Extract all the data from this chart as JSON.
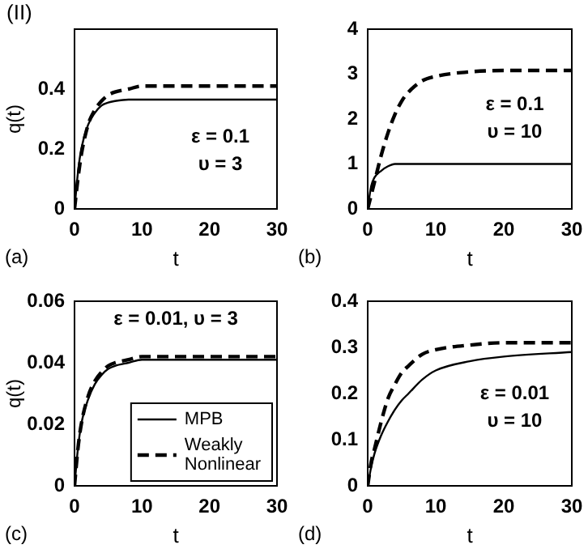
{
  "chart_data": [
    {
      "type": "line",
      "title": "(II)",
      "ylabel": "q(t)",
      "xlabel": "t",
      "annotations": [
        "(a)",
        "ε = 0.1",
        "υ = 3"
      ],
      "xlim": [
        0,
        30
      ],
      "xticks": [
        0,
        10,
        20,
        30
      ],
      "ylim": [
        0,
        0.6
      ],
      "yticks": [
        0,
        0.2,
        0.4
      ],
      "grid": false,
      "legend": false,
      "marker": "none",
      "x": [
        0,
        0.5,
        1,
        2,
        3,
        4,
        5,
        6,
        8,
        10,
        15,
        20,
        30
      ],
      "series": [
        {
          "color": "#000000",
          "line_style": "solid",
          "values": [
            0,
            0.12,
            0.2,
            0.28,
            0.32,
            0.345,
            0.355,
            0.36,
            0.365,
            0.365,
            0.365,
            0.365,
            0.365
          ]
        },
        {
          "color": "#000000",
          "line_style": "dashed",
          "values": [
            0,
            0.1,
            0.18,
            0.28,
            0.33,
            0.36,
            0.38,
            0.39,
            0.4,
            0.41,
            0.41,
            0.41,
            0.41
          ]
        }
      ]
    },
    {
      "type": "line",
      "xlabel": "t",
      "annotations": [
        "(b)",
        "ε = 0.1",
        "υ = 10"
      ],
      "xlim": [
        0,
        30
      ],
      "xticks": [
        0,
        10,
        20,
        30
      ],
      "ylim": [
        0,
        4
      ],
      "yticks": [
        0,
        1,
        2,
        3,
        4
      ],
      "grid": false,
      "legend": false,
      "marker": "none",
      "x": [
        0,
        0.5,
        1,
        2,
        3,
        4,
        5,
        6,
        8,
        10,
        15,
        20,
        30
      ],
      "series": [
        {
          "color": "#000000",
          "line_style": "solid",
          "values": [
            0,
            0.5,
            0.7,
            0.85,
            0.95,
            1,
            1,
            1,
            1,
            1,
            1,
            1,
            1
          ]
        },
        {
          "color": "#000000",
          "line_style": "dashed",
          "values": [
            0,
            0.3,
            0.6,
            1.2,
            1.7,
            2.1,
            2.4,
            2.6,
            2.85,
            2.95,
            3.05,
            3.08,
            3.08
          ]
        }
      ]
    },
    {
      "type": "line",
      "ylabel": "q(t)",
      "xlabel": "t",
      "annotations": [
        "(c)",
        "ε = 0.01, υ = 3"
      ],
      "xlim": [
        0,
        30
      ],
      "xticks": [
        0,
        10,
        20,
        30
      ],
      "ylim": [
        0,
        0.06
      ],
      "yticks": [
        0,
        0.02,
        0.04,
        0.06
      ],
      "grid": false,
      "legend": "bottom right",
      "marker": "none",
      "x": [
        0,
        0.5,
        1,
        2,
        3,
        4,
        5,
        6,
        8,
        10,
        15,
        20,
        30
      ],
      "series": [
        {
          "name": "MPB",
          "color": "#000000",
          "line_style": "solid",
          "values": [
            0,
            0.012,
            0.02,
            0.028,
            0.033,
            0.036,
            0.038,
            0.039,
            0.04,
            0.041,
            0.041,
            0.041,
            0.041
          ]
        },
        {
          "name": "Weakly Nonlinear",
          "color": "#000000",
          "line_style": "dashed",
          "values": [
            0,
            0.012,
            0.02,
            0.029,
            0.034,
            0.037,
            0.039,
            0.04,
            0.041,
            0.042,
            0.042,
            0.042,
            0.042
          ]
        }
      ]
    },
    {
      "type": "line",
      "xlabel": "t",
      "annotations": [
        "(d)",
        "ε = 0.01",
        "υ = 10"
      ],
      "xlim": [
        0,
        30
      ],
      "xticks": [
        0,
        10,
        20,
        30
      ],
      "ylim": [
        0,
        0.4
      ],
      "yticks": [
        0,
        0.1,
        0.2,
        0.3,
        0.4
      ],
      "grid": false,
      "legend": false,
      "marker": "none",
      "x": [
        0,
        0.5,
        1,
        2,
        3,
        4,
        5,
        6,
        8,
        10,
        15,
        20,
        30
      ],
      "series": [
        {
          "color": "#000000",
          "line_style": "solid",
          "values": [
            0,
            0.04,
            0.07,
            0.11,
            0.14,
            0.165,
            0.185,
            0.2,
            0.23,
            0.25,
            0.27,
            0.28,
            0.29
          ]
        },
        {
          "color": "#000000",
          "line_style": "dashed",
          "values": [
            0,
            0.05,
            0.08,
            0.14,
            0.19,
            0.22,
            0.245,
            0.26,
            0.285,
            0.295,
            0.305,
            0.31,
            0.31
          ]
        }
      ]
    }
  ]
}
